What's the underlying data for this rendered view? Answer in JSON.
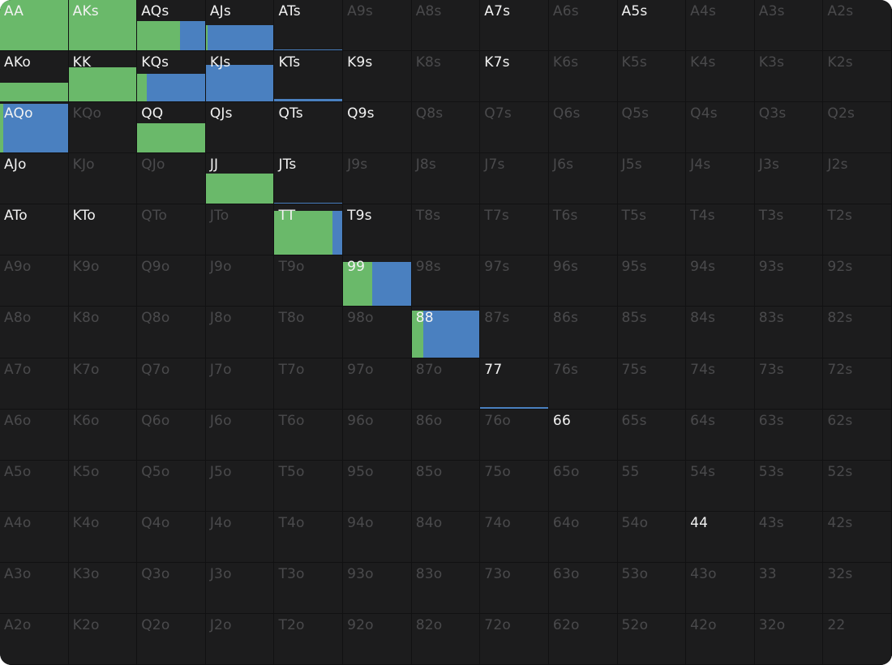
{
  "colors": {
    "raise": "#6ab96a",
    "call": "#4a80c0"
  },
  "legend_note": "Each cell shows hand label; colored bar height = frequency played, split by raise (green) and call (blue) shares.",
  "rows": [
    [
      {
        "label": "AA",
        "active": true,
        "freq": 1.0,
        "raise": 1.0,
        "call": 0.0
      },
      {
        "label": "AKs",
        "active": true,
        "freq": 1.0,
        "raise": 1.0,
        "call": 0.0
      },
      {
        "label": "AQs",
        "active": true,
        "freq": 0.58,
        "raise": 0.63,
        "call": 0.37
      },
      {
        "label": "AJs",
        "active": true,
        "freq": 0.5,
        "raise": 0.02,
        "call": 0.98
      },
      {
        "label": "ATs",
        "active": true,
        "freq": 0.02,
        "raise": 0.0,
        "call": 1.0
      },
      {
        "label": "A9s",
        "active": false
      },
      {
        "label": "A8s",
        "active": false
      },
      {
        "label": "A7s",
        "active": true
      },
      {
        "label": "A6s",
        "active": false
      },
      {
        "label": "A5s",
        "active": true
      },
      {
        "label": "A4s",
        "active": false
      },
      {
        "label": "A3s",
        "active": false
      },
      {
        "label": "A2s",
        "active": false
      }
    ],
    [
      {
        "label": "AKo",
        "active": true,
        "freq": 0.37,
        "raise": 1.0,
        "call": 0.0
      },
      {
        "label": "KK",
        "active": true,
        "freq": 0.68,
        "raise": 1.0,
        "call": 0.0
      },
      {
        "label": "KQs",
        "active": true,
        "freq": 0.55,
        "raise": 0.14,
        "call": 0.86
      },
      {
        "label": "KJs",
        "active": true,
        "freq": 0.72,
        "raise": 0.0,
        "call": 1.0
      },
      {
        "label": "KTs",
        "active": true,
        "freq": 0.05,
        "raise": 0.0,
        "call": 1.0
      },
      {
        "label": "K9s",
        "active": true
      },
      {
        "label": "K8s",
        "active": false
      },
      {
        "label": "K7s",
        "active": true
      },
      {
        "label": "K6s",
        "active": false
      },
      {
        "label": "K5s",
        "active": false
      },
      {
        "label": "K4s",
        "active": false
      },
      {
        "label": "K3s",
        "active": false
      },
      {
        "label": "K2s",
        "active": false
      }
    ],
    [
      {
        "label": "AQo",
        "active": true,
        "freq": 0.97,
        "raise": 0.05,
        "call": 0.95
      },
      {
        "label": "KQo",
        "active": false
      },
      {
        "label": "QQ",
        "active": true,
        "freq": 0.58,
        "raise": 1.0,
        "call": 0.0
      },
      {
        "label": "QJs",
        "active": true
      },
      {
        "label": "QTs",
        "active": true
      },
      {
        "label": "Q9s",
        "active": true
      },
      {
        "label": "Q8s",
        "active": false
      },
      {
        "label": "Q7s",
        "active": false
      },
      {
        "label": "Q6s",
        "active": false
      },
      {
        "label": "Q5s",
        "active": false
      },
      {
        "label": "Q4s",
        "active": false
      },
      {
        "label": "Q3s",
        "active": false
      },
      {
        "label": "Q2s",
        "active": false
      }
    ],
    [
      {
        "label": "AJo",
        "active": true
      },
      {
        "label": "KJo",
        "active": false
      },
      {
        "label": "QJo",
        "active": false
      },
      {
        "label": "JJ",
        "active": true,
        "freq": 0.6,
        "raise": 1.0,
        "call": 0.0
      },
      {
        "label": "JTs",
        "active": true,
        "freq": 0.02,
        "raise": 0.0,
        "call": 1.0
      },
      {
        "label": "J9s",
        "active": false
      },
      {
        "label": "J8s",
        "active": false
      },
      {
        "label": "J7s",
        "active": false
      },
      {
        "label": "J6s",
        "active": false
      },
      {
        "label": "J5s",
        "active": false
      },
      {
        "label": "J4s",
        "active": false
      },
      {
        "label": "J3s",
        "active": false
      },
      {
        "label": "J2s",
        "active": false
      }
    ],
    [
      {
        "label": "ATo",
        "active": true
      },
      {
        "label": "KTo",
        "active": true
      },
      {
        "label": "QTo",
        "active": false
      },
      {
        "label": "JTo",
        "active": false
      },
      {
        "label": "TT",
        "active": true,
        "freq": 0.87,
        "raise": 0.86,
        "call": 0.14
      },
      {
        "label": "T9s",
        "active": true
      },
      {
        "label": "T8s",
        "active": false
      },
      {
        "label": "T7s",
        "active": false
      },
      {
        "label": "T6s",
        "active": false
      },
      {
        "label": "T5s",
        "active": false
      },
      {
        "label": "T4s",
        "active": false
      },
      {
        "label": "T3s",
        "active": false
      },
      {
        "label": "T2s",
        "active": false
      }
    ],
    [
      {
        "label": "A9o",
        "active": false
      },
      {
        "label": "K9o",
        "active": false
      },
      {
        "label": "Q9o",
        "active": false
      },
      {
        "label": "J9o",
        "active": false
      },
      {
        "label": "T9o",
        "active": false
      },
      {
        "label": "99",
        "active": true,
        "freq": 0.87,
        "raise": 0.43,
        "call": 0.57
      },
      {
        "label": "98s",
        "active": false
      },
      {
        "label": "97s",
        "active": false
      },
      {
        "label": "96s",
        "active": false
      },
      {
        "label": "95s",
        "active": false
      },
      {
        "label": "94s",
        "active": false
      },
      {
        "label": "93s",
        "active": false
      },
      {
        "label": "92s",
        "active": false
      }
    ],
    [
      {
        "label": "A8o",
        "active": false
      },
      {
        "label": "K8o",
        "active": false
      },
      {
        "label": "Q8o",
        "active": false
      },
      {
        "label": "J8o",
        "active": false
      },
      {
        "label": "T8o",
        "active": false
      },
      {
        "label": "98o",
        "active": false
      },
      {
        "label": "88",
        "active": true,
        "freq": 0.93,
        "raise": 0.17,
        "call": 0.83
      },
      {
        "label": "87s",
        "active": false
      },
      {
        "label": "86s",
        "active": false
      },
      {
        "label": "85s",
        "active": false
      },
      {
        "label": "84s",
        "active": false
      },
      {
        "label": "83s",
        "active": false
      },
      {
        "label": "82s",
        "active": false
      }
    ],
    [
      {
        "label": "A7o",
        "active": false
      },
      {
        "label": "K7o",
        "active": false
      },
      {
        "label": "Q7o",
        "active": false
      },
      {
        "label": "J7o",
        "active": false
      },
      {
        "label": "T7o",
        "active": false
      },
      {
        "label": "97o",
        "active": false
      },
      {
        "label": "87o",
        "active": false
      },
      {
        "label": "77",
        "active": true,
        "freq": 0.02,
        "raise": 0.0,
        "call": 1.0
      },
      {
        "label": "76s",
        "active": false
      },
      {
        "label": "75s",
        "active": false
      },
      {
        "label": "74s",
        "active": false
      },
      {
        "label": "73s",
        "active": false
      },
      {
        "label": "72s",
        "active": false
      }
    ],
    [
      {
        "label": "A6o",
        "active": false
      },
      {
        "label": "K6o",
        "active": false
      },
      {
        "label": "Q6o",
        "active": false
      },
      {
        "label": "J6o",
        "active": false
      },
      {
        "label": "T6o",
        "active": false
      },
      {
        "label": "96o",
        "active": false
      },
      {
        "label": "86o",
        "active": false
      },
      {
        "label": "76o",
        "active": false
      },
      {
        "label": "66",
        "active": true
      },
      {
        "label": "65s",
        "active": false
      },
      {
        "label": "64s",
        "active": false
      },
      {
        "label": "63s",
        "active": false
      },
      {
        "label": "62s",
        "active": false
      }
    ],
    [
      {
        "label": "A5o",
        "active": false
      },
      {
        "label": "K5o",
        "active": false
      },
      {
        "label": "Q5o",
        "active": false
      },
      {
        "label": "J5o",
        "active": false
      },
      {
        "label": "T5o",
        "active": false
      },
      {
        "label": "95o",
        "active": false
      },
      {
        "label": "85o",
        "active": false
      },
      {
        "label": "75o",
        "active": false
      },
      {
        "label": "65o",
        "active": false
      },
      {
        "label": "55",
        "active": false
      },
      {
        "label": "54s",
        "active": false
      },
      {
        "label": "53s",
        "active": false
      },
      {
        "label": "52s",
        "active": false
      }
    ],
    [
      {
        "label": "A4o",
        "active": false
      },
      {
        "label": "K4o",
        "active": false
      },
      {
        "label": "Q4o",
        "active": false
      },
      {
        "label": "J4o",
        "active": false
      },
      {
        "label": "T4o",
        "active": false
      },
      {
        "label": "94o",
        "active": false
      },
      {
        "label": "84o",
        "active": false
      },
      {
        "label": "74o",
        "active": false
      },
      {
        "label": "64o",
        "active": false
      },
      {
        "label": "54o",
        "active": false
      },
      {
        "label": "44",
        "active": true
      },
      {
        "label": "43s",
        "active": false
      },
      {
        "label": "42s",
        "active": false
      }
    ],
    [
      {
        "label": "A3o",
        "active": false
      },
      {
        "label": "K3o",
        "active": false
      },
      {
        "label": "Q3o",
        "active": false
      },
      {
        "label": "J3o",
        "active": false
      },
      {
        "label": "T3o",
        "active": false
      },
      {
        "label": "93o",
        "active": false
      },
      {
        "label": "83o",
        "active": false
      },
      {
        "label": "73o",
        "active": false
      },
      {
        "label": "63o",
        "active": false
      },
      {
        "label": "53o",
        "active": false
      },
      {
        "label": "43o",
        "active": false
      },
      {
        "label": "33",
        "active": false
      },
      {
        "label": "32s",
        "active": false
      }
    ],
    [
      {
        "label": "A2o",
        "active": false
      },
      {
        "label": "K2o",
        "active": false
      },
      {
        "label": "Q2o",
        "active": false
      },
      {
        "label": "J2o",
        "active": false
      },
      {
        "label": "T2o",
        "active": false
      },
      {
        "label": "92o",
        "active": false
      },
      {
        "label": "82o",
        "active": false
      },
      {
        "label": "72o",
        "active": false
      },
      {
        "label": "62o",
        "active": false
      },
      {
        "label": "52o",
        "active": false
      },
      {
        "label": "42o",
        "active": false
      },
      {
        "label": "32o",
        "active": false
      },
      {
        "label": "22",
        "active": false
      }
    ]
  ]
}
